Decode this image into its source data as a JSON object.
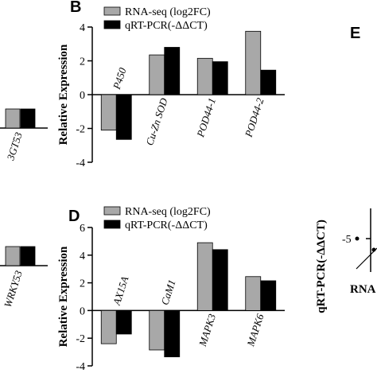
{
  "chart_data": [
    {
      "panel": "B",
      "type": "bar",
      "ylabel": "Relative Expression",
      "ylim": [
        -4,
        4
      ],
      "yticks": [
        -4,
        -2,
        0,
        2,
        4
      ],
      "categories": [
        "P450",
        "Cu-Zn SOD",
        "POD44-1",
        "POD44-2"
      ],
      "series": [
        {
          "name": "RNA-seq (log2FC)",
          "color": "#a8a8a8",
          "values": [
            -2.1,
            2.35,
            2.15,
            3.75
          ]
        },
        {
          "name": "qRT-PCR(-ΔΔCT)",
          "color": "#000000",
          "values": [
            -2.65,
            2.8,
            1.95,
            1.45
          ]
        }
      ],
      "legend": "top"
    },
    {
      "panel": "D",
      "type": "bar",
      "ylabel": "Relative Expression",
      "ylim": [
        -4,
        6
      ],
      "yticks": [
        -4,
        -2,
        0,
        2,
        4,
        6
      ],
      "categories": [
        "AX15A",
        "CaM1",
        "MAPK3",
        "MAPK6"
      ],
      "series": [
        {
          "name": "RNA-seq (log2FC)",
          "color": "#a8a8a8",
          "values": [
            -2.4,
            -2.85,
            4.9,
            2.45
          ]
        },
        {
          "name": "qRT-PCR(-ΔΔCT)",
          "color": "#000000",
          "values": [
            -1.7,
            -3.35,
            4.4,
            2.15
          ]
        }
      ],
      "legend": "top"
    },
    {
      "panel": "A-partial",
      "type": "bar",
      "categories": [
        "3GT53"
      ],
      "series": [
        {
          "name": "RNA-seq (log2FC)",
          "color": "#a8a8a8",
          "values": [
            1
          ]
        },
        {
          "name": "qRT-PCR(-ΔΔCT)",
          "color": "#000000",
          "values": [
            1
          ]
        }
      ]
    },
    {
      "panel": "C-partial",
      "type": "bar",
      "categories": [
        "WRKY53"
      ],
      "series": [
        {
          "name": "RNA-seq (log2FC)",
          "color": "#a8a8a8",
          "values": [
            1
          ]
        },
        {
          "name": "qRT-PCR(-ΔΔCT)",
          "color": "#000000",
          "values": [
            1
          ]
        }
      ]
    },
    {
      "panel": "E",
      "type": "scatter",
      "ylabel": "qRT-PCR(-ΔΔCT)",
      "xlabel": "RNA",
      "tick_labels": [
        "-5"
      ]
    }
  ]
}
